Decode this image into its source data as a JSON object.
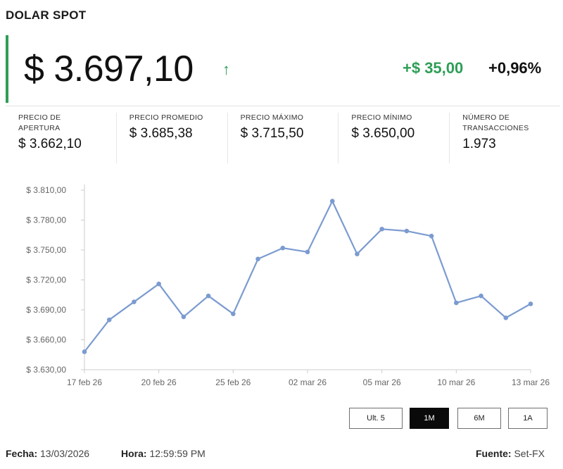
{
  "header": {
    "title": "DOLAR SPOT"
  },
  "price": {
    "value": "$ 3.697,10",
    "change_abs": "+$ 35,00",
    "change_pct": "+0,96%",
    "up_color": "#2e9e57"
  },
  "stats": [
    {
      "label": "PRECIO DE APERTURA",
      "value": "$ 3.662,10"
    },
    {
      "label": "PRECIO PROMEDIO",
      "value": "$ 3.685,38"
    },
    {
      "label": "PRECIO MÁXIMO",
      "value": "$ 3.715,50"
    },
    {
      "label": "PRECIO MÍNIMO",
      "value": "$ 3.650,00"
    },
    {
      "label": "NÚMERO DE TRANSACCIONES",
      "value": "1.973"
    }
  ],
  "range_buttons": [
    {
      "label": "Ult. 5",
      "active": false
    },
    {
      "label": "1M",
      "active": true
    },
    {
      "label": "6M",
      "active": false
    },
    {
      "label": "1A",
      "active": false
    }
  ],
  "footer": {
    "fecha_label": "Fecha:",
    "fecha": "13/03/2026",
    "hora_label": "Hora:",
    "hora": "12:59:59 PM",
    "fuente_label": "Fuente:",
    "fuente": "Set-FX"
  },
  "chart_data": {
    "type": "line",
    "x_ticks": [
      "17 feb 26",
      "20 feb 26",
      "25 feb 26",
      "02 mar 26",
      "05 mar 26",
      "10 mar 26",
      "13 mar 26"
    ],
    "x_tick_index": [
      0,
      3,
      6,
      9,
      12,
      15,
      18
    ],
    "y_ticks": [
      "$ 3.630,00",
      "$ 3.660,00",
      "$ 3.690,00",
      "$ 3.720,00",
      "$ 3.750,00",
      "$ 3.780,00",
      "$ 3.810,00"
    ],
    "ylim": [
      3630,
      3810
    ],
    "values": [
      3648,
      3680,
      3698,
      3716,
      3683,
      3704,
      3686,
      3741,
      3752,
      3748,
      3799,
      3746,
      3771,
      3769,
      3764,
      3697,
      3704,
      3682,
      3696
    ],
    "line_color": "#7b9bd0",
    "grid": false
  }
}
